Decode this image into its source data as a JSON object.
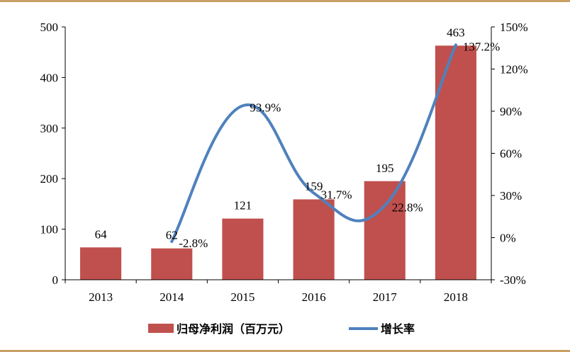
{
  "chart_data": {
    "type": "bar",
    "categories": [
      "2013",
      "2014",
      "2015",
      "2016",
      "2017",
      "2018"
    ],
    "series": [
      {
        "name": "归母净利润（百万元）",
        "kind": "bar",
        "axis": "left",
        "values": [
          64,
          62,
          121,
          159,
          195,
          463
        ],
        "labels": [
          "64",
          "62",
          "121",
          "159",
          "195",
          "463"
        ]
      },
      {
        "name": "增长率",
        "kind": "line",
        "axis": "right",
        "x": [
          "2014",
          "2015",
          "2016",
          "2017",
          "2018"
        ],
        "values": [
          -2.8,
          93.9,
          31.7,
          22.8,
          137.2
        ],
        "labels": [
          "-2.8%",
          "93.9%",
          "31.7%",
          "22.8%",
          "137.2%"
        ]
      }
    ],
    "y_left": {
      "min": 0,
      "max": 500,
      "ticks": [
        "0",
        "100",
        "200",
        "300",
        "400",
        "500"
      ]
    },
    "y_right": {
      "min": -30,
      "max": 150,
      "ticks": [
        "-30%",
        "0%",
        "30%",
        "60%",
        "90%",
        "120%",
        "150%"
      ]
    },
    "legend": {
      "position": "bottom"
    }
  },
  "colors": {
    "bar": "#c0504d",
    "line": "#4f81bd",
    "frame": "#c8a063",
    "axis": "#000000"
  }
}
